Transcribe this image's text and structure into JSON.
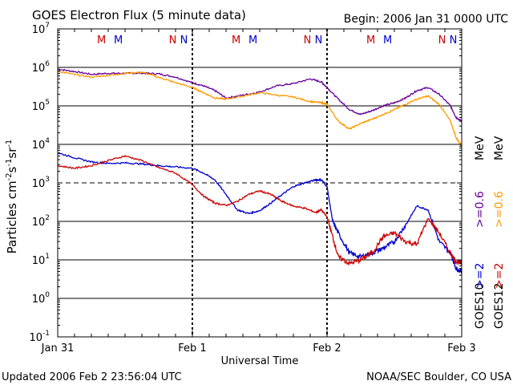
{
  "header": {
    "title": "GOES Electron Flux (5 minute data)",
    "begin": "Begin: 2006 Jan 31 0000 UTC"
  },
  "footer": {
    "updated": "Updated 2006 Feb  2 23:56:04 UTC",
    "credit": "NOAA/SEC Boulder, CO USA"
  },
  "chart_data": {
    "type": "line",
    "title": "GOES Electron Flux (5 minute data)",
    "xlabel": "Universal Time",
    "ylabel_text": "Particles cm",
    "ylabel_sup1": "-2",
    "ylabel_mid1": "s",
    "ylabel_sup2": "-1",
    "ylabel_mid2": "sr",
    "ylabel_sup3": "-1",
    "yscale": "log",
    "ylim": [
      0.1,
      10000000
    ],
    "xlim_hours": [
      0,
      72
    ],
    "x_ticks": [
      {
        "label": "Jan 31",
        "hour": 0
      },
      {
        "label": "Feb 1",
        "hour": 24
      },
      {
        "label": "Feb 2",
        "hour": 48
      },
      {
        "label": "Feb 3",
        "hour": 72
      }
    ],
    "y_ticks": [
      {
        "base": "10",
        "exp": "7",
        "value": 10000000
      },
      {
        "base": "10",
        "exp": "6",
        "value": 1000000
      },
      {
        "base": "10",
        "exp": "5",
        "value": 100000
      },
      {
        "base": "10",
        "exp": "4",
        "value": 10000
      },
      {
        "base": "10",
        "exp": "3",
        "value": 1000
      },
      {
        "base": "10",
        "exp": "2",
        "value": 100
      },
      {
        "base": "10",
        "exp": "1",
        "value": 10
      },
      {
        "base": "10",
        "exp": "0",
        "value": 1
      },
      {
        "base": "10",
        "exp": "-1",
        "value": 0.1
      }
    ],
    "gridlines": [
      1000000,
      100000,
      10000,
      1000,
      100,
      10,
      1
    ],
    "dashed_gridline": 1000,
    "markers": [
      {
        "label": "M",
        "hour": 7.8,
        "color": "#cc0000"
      },
      {
        "label": "M",
        "hour": 10.8,
        "color": "#0000cc"
      },
      {
        "label": "N",
        "hour": 20.5,
        "color": "#cc0000"
      },
      {
        "label": "N",
        "hour": 22.5,
        "color": "#0000cc"
      },
      {
        "label": "M",
        "hour": 31.8,
        "color": "#cc0000"
      },
      {
        "label": "M",
        "hour": 34.8,
        "color": "#0000cc"
      },
      {
        "label": "N",
        "hour": 44.5,
        "color": "#cc0000"
      },
      {
        "label": "N",
        "hour": 46.5,
        "color": "#0000cc"
      },
      {
        "label": "M",
        "hour": 55.8,
        "color": "#cc0000"
      },
      {
        "label": "M",
        "hour": 58.8,
        "color": "#0000cc"
      },
      {
        "label": "N",
        "hour": 68.5,
        "color": "#cc0000"
      },
      {
        "label": "N",
        "hour": 70.5,
        "color": "#0000cc"
      }
    ],
    "legend": {
      "placement": "right",
      "columns": [
        {
          "satellite": "GOES10",
          "color": "#0000cc",
          "text_a": ">=2",
          "text_b": ">=0.6",
          "color_b": "#660099",
          "unit": "MeV"
        },
        {
          "satellite": "GOES12",
          "color": "#cc0000",
          "text_a": ">=2",
          "text_b": ">=0.6",
          "color_b": "#ff9900",
          "unit": "MeV"
        }
      ]
    },
    "series": [
      {
        "name": "GOES10 >=0.6 MeV",
        "color": "#660099",
        "x": [
          0,
          3,
          6,
          9,
          12,
          15,
          18,
          21,
          24,
          26,
          28,
          30,
          33,
          36,
          39,
          42,
          45,
          47,
          48,
          50,
          52,
          54,
          56,
          58,
          60,
          62,
          64,
          66,
          68,
          70,
          71,
          72
        ],
        "y": [
          900000,
          780000,
          660000,
          700000,
          700000,
          710000,
          680000,
          560000,
          400000,
          330000,
          250000,
          160000,
          190000,
          230000,
          330000,
          380000,
          500000,
          420000,
          300000,
          150000,
          80000,
          60000,
          75000,
          100000,
          120000,
          160000,
          250000,
          300000,
          200000,
          100000,
          50000,
          40000
        ]
      },
      {
        "name": "GOES12 >=0.6 MeV",
        "color": "#ff9900",
        "x": [
          0,
          3,
          6,
          9,
          12,
          15,
          18,
          21,
          24,
          26,
          28,
          30,
          33,
          36,
          39,
          42,
          45,
          47,
          48,
          50,
          52,
          54,
          56,
          58,
          60,
          62,
          64,
          66,
          68,
          70,
          71,
          72
        ],
        "y": [
          800000,
          650000,
          560000,
          620000,
          700000,
          750000,
          550000,
          400000,
          300000,
          220000,
          160000,
          150000,
          180000,
          220000,
          190000,
          170000,
          130000,
          120000,
          110000,
          40000,
          25000,
          35000,
          45000,
          60000,
          80000,
          110000,
          150000,
          180000,
          110000,
          40000,
          15000,
          9000
        ]
      },
      {
        "name": "GOES10 >=2 MeV",
        "color": "#0000cc",
        "x": [
          0,
          3,
          6,
          9,
          12,
          15,
          18,
          21,
          24,
          26,
          28,
          30,
          32,
          34,
          36,
          38,
          40,
          42,
          44,
          46,
          47,
          48,
          49,
          50,
          52,
          54,
          56,
          58,
          60,
          62,
          64,
          66,
          68,
          70,
          71,
          72
        ],
        "y": [
          6000,
          4500,
          3500,
          3200,
          3300,
          3100,
          2800,
          2600,
          2400,
          1800,
          1200,
          500,
          200,
          160,
          190,
          300,
          500,
          800,
          1000,
          1200,
          1200,
          800,
          100,
          50,
          15,
          12,
          15,
          20,
          30,
          80,
          250,
          200,
          30,
          15,
          6,
          5
        ]
      },
      {
        "name": "GOES12 >=2 MeV",
        "color": "#cc0000",
        "x": [
          0,
          3,
          6,
          9,
          12,
          15,
          18,
          21,
          24,
          26,
          28,
          30,
          32,
          34,
          36,
          38,
          40,
          42,
          44,
          46,
          47,
          48,
          49,
          50,
          52,
          54,
          56,
          58,
          60,
          62,
          64,
          66,
          68,
          70,
          71,
          72
        ],
        "y": [
          2800,
          2400,
          2800,
          3800,
          5000,
          3800,
          2500,
          1800,
          900,
          450,
          300,
          260,
          330,
          500,
          620,
          500,
          330,
          250,
          220,
          170,
          200,
          130,
          40,
          12,
          8,
          10,
          15,
          40,
          50,
          30,
          25,
          120,
          50,
          15,
          9,
          8
        ]
      }
    ]
  }
}
